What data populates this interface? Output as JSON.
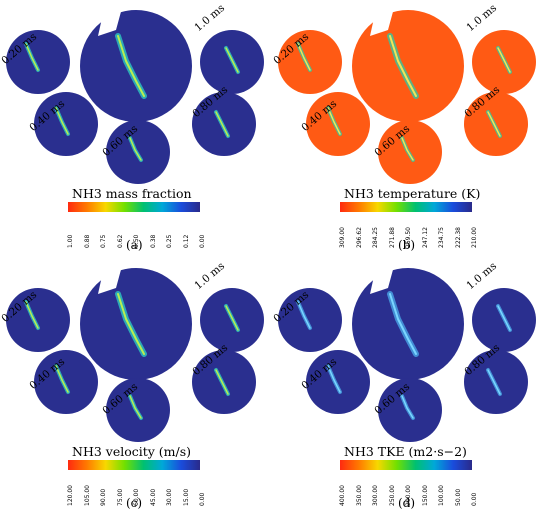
{
  "panels": [
    {
      "caption": "(a)",
      "colorbar_title": "NH3 mass fraction",
      "colorbar_colors": [
        "#ff2a10",
        "#ff7a00",
        "#f7d800",
        "#72e000",
        "#00c070",
        "#00a8d8",
        "#1a4cdc",
        "#2a2a8a"
      ],
      "ticks": [
        "1.00",
        "0.88",
        "0.75",
        "0.62",
        "0.50",
        "0.38",
        "0.25",
        "0.12",
        "0.00"
      ],
      "background_color": "#2a2f8f",
      "times": [
        "0.20 ms",
        "1.0 ms",
        "0.40 ms",
        "0.80 ms",
        "0.60 ms"
      ]
    },
    {
      "caption": "(b)",
      "colorbar_title": "NH3 temperature (K)",
      "colorbar_colors": [
        "#ff2a10",
        "#ff7a00",
        "#f7d800",
        "#72e000",
        "#00c070",
        "#00a8d8",
        "#1a4cdc",
        "#2a2a8a"
      ],
      "ticks": [
        "309.00",
        "296.62",
        "284.25",
        "271.88",
        "259.50",
        "247.12",
        "234.75",
        "222.38",
        "210.00"
      ],
      "background_color": "#ff5a14",
      "times": [
        "0.20 ms",
        "1.0 ms",
        "0.40 ms",
        "0.80 ms",
        "0.60 ms"
      ]
    },
    {
      "caption": "(c)",
      "colorbar_title": "NH3 velocity (m/s)",
      "colorbar_colors": [
        "#ff2a10",
        "#ff7a00",
        "#f7d800",
        "#72e000",
        "#00c070",
        "#00a8d8",
        "#1a4cdc",
        "#2a2a8a"
      ],
      "ticks": [
        "120.00",
        "105.00",
        "90.00",
        "75.00",
        "60.00",
        "45.00",
        "30.00",
        "15.00",
        "0.00"
      ],
      "background_color": "#2a2f8f",
      "times": [
        "0.20 ms",
        "1.0 ms",
        "0.40 ms",
        "0.80 ms",
        "0.60 ms"
      ]
    },
    {
      "caption": "(d)",
      "colorbar_title": "NH3 TKE (m2·s−2)",
      "colorbar_colors": [
        "#ff2a10",
        "#ff7a00",
        "#f7d800",
        "#72e000",
        "#00c070",
        "#00a8d8",
        "#1a4cdc",
        "#2a2a8a"
      ],
      "ticks": [
        "400.00",
        "350.00",
        "300.00",
        "250.00",
        "200.00",
        "150.00",
        "100.00",
        "50.00",
        "0.00"
      ],
      "background_color": "#2a2f8f",
      "times": [
        "0.20 ms",
        "1.0 ms",
        "0.40 ms",
        "0.80 ms",
        "0.60 ms"
      ]
    }
  ]
}
